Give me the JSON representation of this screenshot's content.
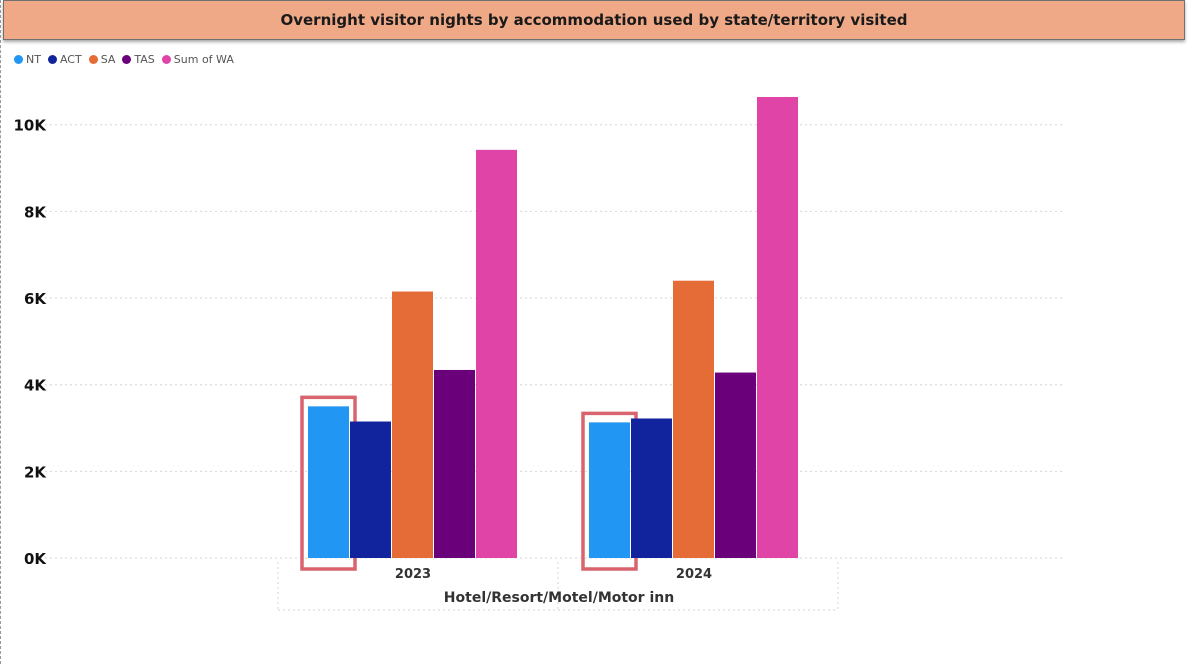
{
  "title": "Overnight visitor nights by accommodation used by state/territory visited",
  "chart_data": {
    "type": "bar",
    "xlabel": "Hotel/Resort/Motel/Motor inn",
    "ylabel": "",
    "categories": [
      "2023",
      "2024"
    ],
    "series": [
      {
        "name": "NT",
        "color": "#2196f3",
        "values": [
          3500,
          3130
        ]
      },
      {
        "name": "ACT",
        "color": "#12239e",
        "values": [
          3150,
          3220
        ]
      },
      {
        "name": "SA",
        "color": "#e66c37",
        "values": [
          6150,
          6400
        ]
      },
      {
        "name": "TAS",
        "color": "#6b007b",
        "values": [
          4340,
          4280
        ]
      },
      {
        "name": "Sum of WA",
        "color": "#e044a7",
        "values": [
          9420,
          10640
        ]
      }
    ],
    "ylim": [
      0,
      10640
    ],
    "yticks": [
      0,
      2000,
      4000,
      6000,
      8000,
      10000
    ],
    "ytick_labels": [
      "0K",
      "2K",
      "4K",
      "6K",
      "8K",
      "10K"
    ],
    "grid": true,
    "legend_position": "top-left",
    "highlighted": {
      "series": "NT",
      "color": "#d9646d"
    }
  }
}
